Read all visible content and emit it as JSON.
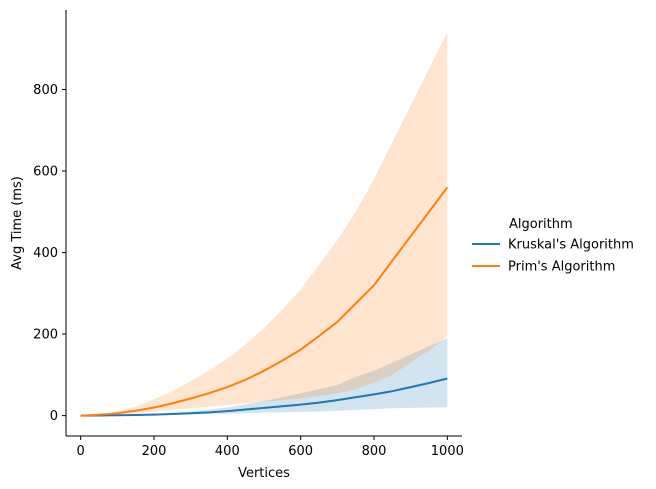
{
  "chart_data": {
    "type": "line",
    "xlabel": "Vertices",
    "ylabel": "Avg Time (ms)",
    "xlim": [
      -40,
      1040
    ],
    "ylim": [
      -50,
      995
    ],
    "xticks": [
      0,
      200,
      400,
      600,
      800,
      1000
    ],
    "yticks": [
      0,
      200,
      400,
      600,
      800
    ],
    "legend": {
      "title": "Algorithm",
      "placement": "right"
    },
    "x": [
      0,
      50,
      100,
      150,
      200,
      250,
      300,
      350,
      400,
      450,
      500,
      550,
      600,
      650,
      700,
      750,
      800,
      850,
      900,
      950,
      1000
    ],
    "series": [
      {
        "name": "Kruskal's Algorithm",
        "color": "#1f77b4",
        "values": [
          0,
          0.3,
          0.8,
          1.5,
          2.5,
          4,
          6,
          8,
          11,
          15,
          19,
          23,
          27,
          32,
          38,
          45,
          52,
          60,
          70,
          80,
          91
        ],
        "ci_lower": [
          0,
          0.2,
          0.5,
          1,
          1.5,
          2,
          3,
          4,
          5,
          6,
          7,
          8,
          9,
          10,
          12,
          14,
          16,
          18,
          19,
          20,
          21
        ],
        "ci_upper": [
          0,
          0.5,
          1.2,
          2.5,
          4,
          7,
          10,
          15,
          20,
          28,
          35,
          45,
          55,
          65,
          75,
          95,
          110,
          130,
          150,
          170,
          190
        ]
      },
      {
        "name": "Prim's Algorithm",
        "color": "#ff7f0e",
        "values": [
          0,
          2,
          6,
          12,
          20,
          30,
          42,
          55,
          70,
          88,
          110,
          135,
          162,
          195,
          230,
          275,
          320,
          380,
          440,
          500,
          560
        ],
        "ci_lower": [
          0,
          1,
          3,
          6,
          10,
          14,
          18,
          22,
          26,
          30,
          34,
          38,
          42,
          48,
          55,
          65,
          80,
          100,
          130,
          160,
          195
        ],
        "ci_upper": [
          0,
          3,
          10,
          22,
          40,
          60,
          85,
          110,
          140,
          175,
          215,
          260,
          310,
          370,
          430,
          500,
          580,
          670,
          760,
          850,
          940
        ]
      }
    ]
  }
}
